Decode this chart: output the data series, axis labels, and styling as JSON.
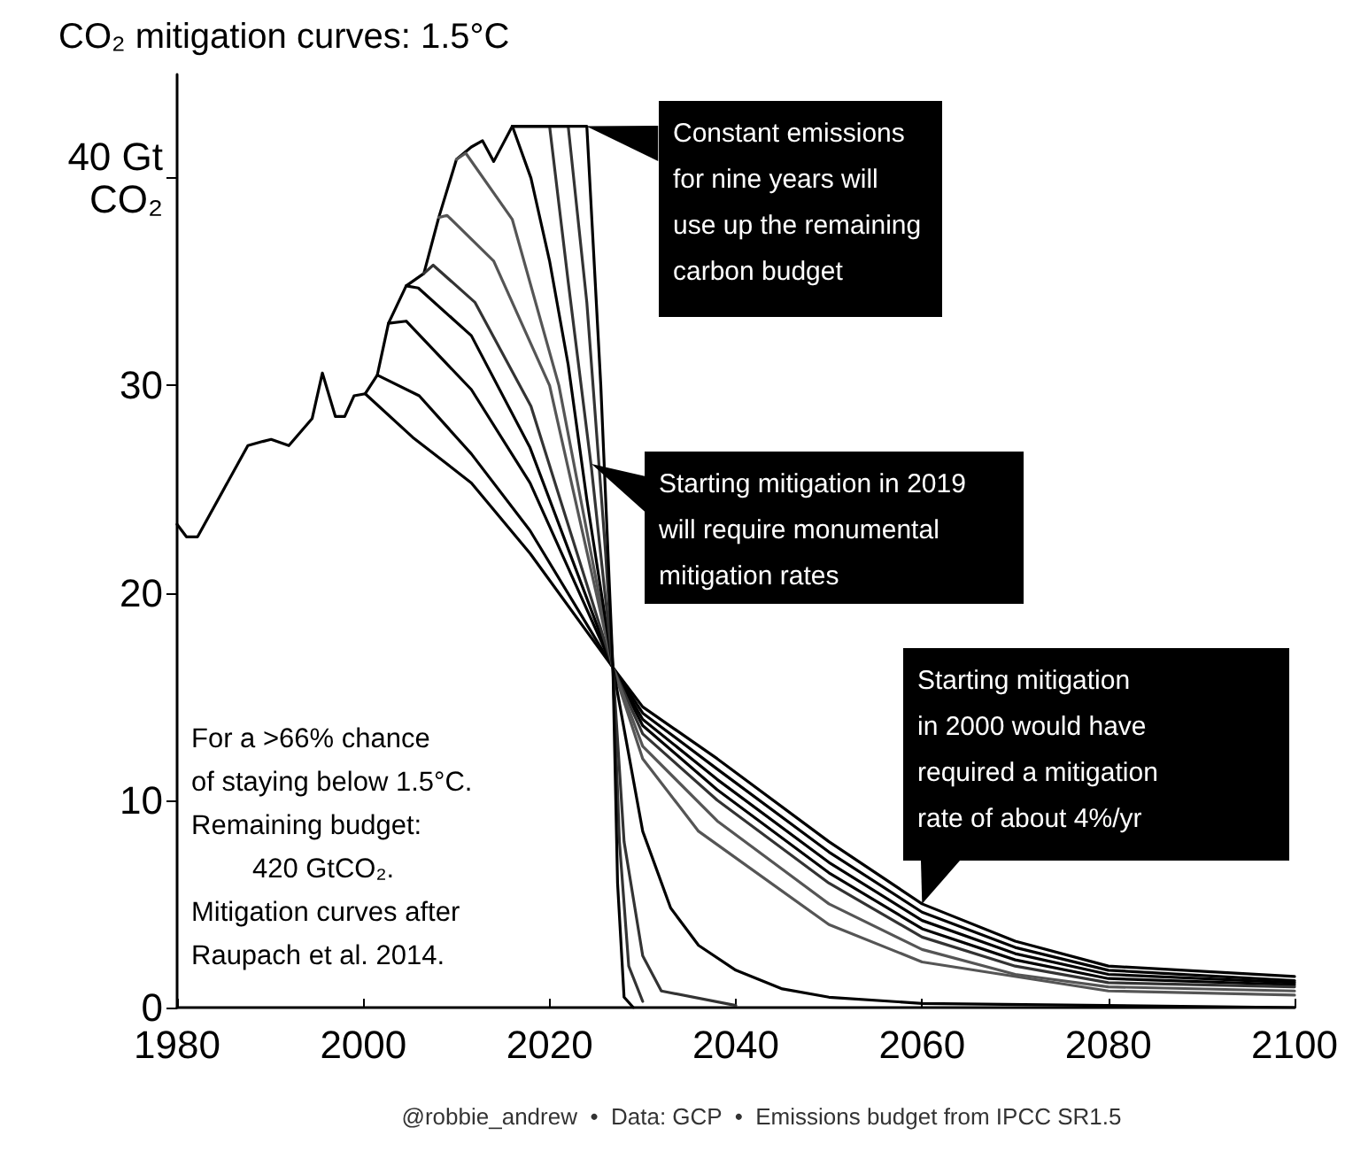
{
  "chart_data": {
    "type": "line",
    "title": "CO₂ mitigation curves: 1.5°C",
    "xlim": [
      1980,
      2100
    ],
    "xticks": [
      1980,
      2000,
      2020,
      2040,
      2060,
      2080,
      2100
    ],
    "ylim": [
      0,
      45
    ],
    "yticks": [
      0,
      10,
      20,
      30,
      {
        "value": 40,
        "label": "40 Gt\nCO₂"
      }
    ],
    "grid": false,
    "marker": "none",
    "line_style": "solid",
    "series": [
      {
        "color": "#000000",
        "x": [
          1980,
          1981,
          1982.2,
          1987.6,
          1989.2,
          1990.1,
          1992,
          1994.5,
          1995.6,
          1997,
          1998,
          1999,
          2000.2,
          2001.5,
          2002.7,
          2004.6,
          2006.5,
          2008.1,
          2010,
          2011.6,
          2012.8,
          2014,
          2016
        ],
        "values": [
          23.3,
          22.7,
          22.7,
          27.1,
          27.3,
          27.4,
          27.1,
          28.4,
          30.6,
          28.5,
          28.5,
          29.5,
          29.6,
          30.5,
          33,
          34.8,
          35.4,
          38.1,
          40.9,
          41.5,
          41.8,
          40.8,
          42.5
        ]
      },
      {
        "color": "#000000",
        "x": [
          2000.2,
          2005.3,
          2011.6,
          2017.9,
          2026.8,
          2030,
          2038,
          2050,
          2060,
          2070,
          2080,
          2100
        ],
        "values": [
          29.6,
          27.5,
          25.3,
          21.9,
          16.4,
          14.5,
          12,
          8,
          5,
          3.2,
          2,
          1.5
        ]
      },
      {
        "color": "#000000",
        "x": [
          2001.5,
          2006,
          2011.6,
          2017.9,
          2026.8,
          2030,
          2038,
          2050,
          2060,
          2070,
          2080,
          2100
        ],
        "values": [
          30.5,
          29.5,
          26.7,
          23,
          16.4,
          14.2,
          11.5,
          7.5,
          4.6,
          2.9,
          1.8,
          1.3
        ]
      },
      {
        "color": "#000000",
        "x": [
          2002.7,
          2004.6,
          2011.6,
          2017.9,
          2026.8,
          2030,
          2038,
          2050,
          2060,
          2070,
          2080,
          2100
        ],
        "values": [
          33,
          33.1,
          29.8,
          25.3,
          16.4,
          13.9,
          11,
          7,
          4.2,
          2.6,
          1.6,
          1.2
        ]
      },
      {
        "color": "#000000",
        "x": [
          2004.6,
          2005.9,
          2011.6,
          2017.9,
          2026.8,
          2030,
          2038,
          2050,
          2060,
          2070,
          2080,
          2100
        ],
        "values": [
          34.8,
          34.7,
          32.4,
          27,
          16.4,
          13.6,
          10.5,
          6.5,
          3.8,
          2.3,
          1.4,
          1.1
        ]
      },
      {
        "color": "#333333",
        "x": [
          2006.5,
          2007.5,
          2012,
          2018,
          2026.8,
          2030,
          2038,
          2050,
          2060,
          2070,
          2080,
          2100
        ],
        "values": [
          35.4,
          35.8,
          34,
          29,
          16.4,
          13.2,
          10,
          6,
          3.4,
          2,
          1.2,
          1
        ]
      },
      {
        "color": "#555555",
        "x": [
          2008.1,
          2009,
          2014,
          2020,
          2026.8,
          2030,
          2038,
          2050,
          2060,
          2070,
          2080,
          2100
        ],
        "values": [
          38.1,
          38.2,
          36,
          30,
          16.4,
          12.6,
          9,
          5,
          2.8,
          1.6,
          1,
          0.8
        ]
      },
      {
        "color": "#555555",
        "x": [
          2010,
          2011,
          2016,
          2021,
          2026.8,
          2030,
          2036,
          2050,
          2060,
          2080,
          2100
        ],
        "values": [
          40.9,
          41.2,
          38,
          30,
          16.4,
          12,
          8.5,
          4,
          2.2,
          0.8,
          0.6
        ]
      },
      {
        "color": "#000000",
        "x": [
          2016,
          2018,
          2020,
          2022,
          2024,
          2026.8,
          2030,
          2033,
          2036,
          2040,
          2045,
          2050,
          2060,
          2100
        ],
        "values": [
          42.5,
          40,
          36,
          31,
          24.5,
          16.4,
          8.5,
          4.8,
          3,
          1.8,
          0.9,
          0.5,
          0.2,
          0
        ]
      },
      {
        "color": "#333333",
        "x": [
          2016,
          2020,
          2022,
          2024.5,
          2026.8,
          2028,
          2030,
          2032,
          2040
        ],
        "values": [
          42.5,
          42.5,
          35,
          26,
          16.4,
          8,
          2.5,
          0.8,
          0.1
        ]
      },
      {
        "color": "#333333",
        "x": [
          2016,
          2022,
          2024,
          2026,
          2026.8,
          2027.5,
          2028.5,
          2030
        ],
        "values": [
          42.5,
          42.5,
          34,
          22,
          16.4,
          8,
          2,
          0.3
        ]
      },
      {
        "color": "#000000",
        "x": [
          2016,
          2024,
          2025.5,
          2026.8,
          2027.3,
          2028,
          2029
        ],
        "values": [
          42.5,
          42.5,
          30,
          16.4,
          6,
          0.5,
          0
        ]
      }
    ],
    "annotations": [
      {
        "text": "Constant emissions\nfor nine years will\nuse up the remaining\ncarbon budget",
        "x": 2024,
        "y": 42.5
      },
      {
        "text": "Starting mitigation in 2019\nwill require monumental\nmitigation rates",
        "x": 2024.5,
        "y": 26.2
      },
      {
        "text": "Starting mitigation\nin 2000 would have\nrequired a mitigation\nrate of about 4%/yr",
        "x": 2060,
        "y": 5
      },
      "For a >66% chance\nof staying below 1.5°C.\nRemaining budget:\n        420 GtCO₂.\nMitigation curves after\nRaupach et al. 2014.",
      "@robbie_andrew  •  Data: GCP  •  Emissions budget from IPCC SR1.5"
    ]
  }
}
